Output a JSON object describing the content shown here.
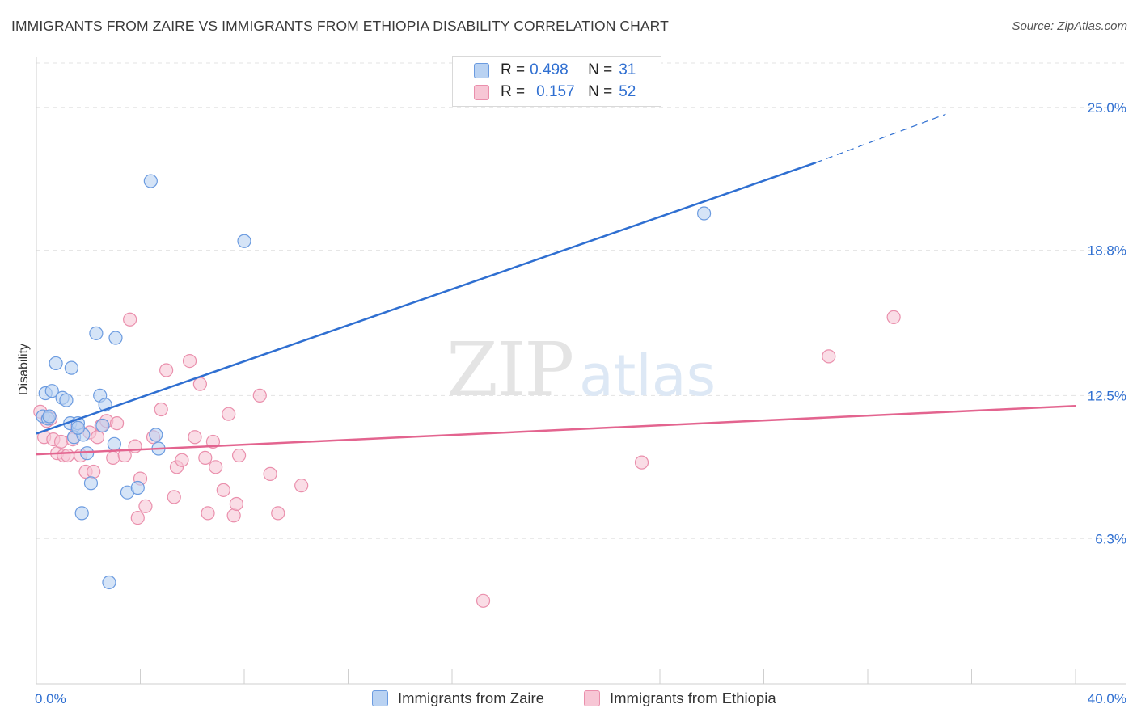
{
  "header": {
    "title": "IMMIGRANTS FROM ZAIRE VS IMMIGRANTS FROM ETHIOPIA DISABILITY CORRELATION CHART",
    "source": "Source: ZipAtlas.com"
  },
  "watermark": {
    "zip": "ZIP",
    "atlas": "atlas"
  },
  "legend": {
    "rows": [
      {
        "r_label": "R =",
        "r_value": "0.498",
        "n_label": "N =",
        "n_value": "31",
        "color": "#a9c8f0"
      },
      {
        "r_label": "R =",
        "r_value": "0.157",
        "n_label": "N =",
        "n_value": "52",
        "color": "#f5b8cb"
      }
    ]
  },
  "bottom_legend": {
    "zaire": "Immigrants from Zaire",
    "ethiopia": "Immigrants from Ethiopia"
  },
  "colors": {
    "zaire_fill": "#b9d2f2",
    "zaire_stroke": "#6b9be0",
    "zaire_line": "#2f6fd1",
    "ethiopia_fill": "#f7c6d5",
    "ethiopia_stroke": "#ea8fac",
    "ethiopia_line": "#e3648f",
    "axis_text": "#2f6fd1"
  },
  "chart_data": {
    "type": "scatter",
    "title": "IMMIGRANTS FROM ZAIRE VS IMMIGRANTS FROM ETHIOPIA DISABILITY CORRELATION CHART",
    "xlabel": "",
    "ylabel": "Disability",
    "xlim": [
      0,
      40
    ],
    "ylim": [
      0,
      27.2
    ],
    "x_tick_labels": [
      {
        "value": 0,
        "label": "0.0%"
      },
      {
        "value": 40,
        "label": "40.0%"
      }
    ],
    "y_tick_labels": [
      {
        "value": 6.3,
        "label": "6.3%"
      },
      {
        "value": 12.5,
        "label": "12.5%"
      },
      {
        "value": 18.8,
        "label": "18.8%"
      },
      {
        "value": 25.0,
        "label": "25.0%"
      }
    ],
    "x_minor_ticks": [
      0,
      4,
      8,
      12,
      16,
      20,
      24,
      28,
      32,
      36,
      40
    ],
    "grid": true,
    "series": [
      {
        "name": "Immigrants from Zaire",
        "r": 0.498,
        "n": 31,
        "trend": {
          "x0": 0,
          "y0": 10.85,
          "x1": 30,
          "y1": 22.6,
          "dash_to_x": 35,
          "dash_to_y": 24.7
        },
        "points": [
          [
            0.25,
            11.6
          ],
          [
            0.45,
            11.5
          ],
          [
            0.35,
            12.6
          ],
          [
            0.6,
            12.7
          ],
          [
            0.75,
            13.9
          ],
          [
            1.0,
            12.4
          ],
          [
            1.15,
            12.3
          ],
          [
            1.35,
            13.7
          ],
          [
            1.3,
            11.3
          ],
          [
            1.45,
            10.7
          ],
          [
            1.6,
            11.3
          ],
          [
            1.8,
            10.8
          ],
          [
            1.95,
            10.0
          ],
          [
            2.1,
            8.7
          ],
          [
            2.3,
            15.2
          ],
          [
            2.45,
            12.5
          ],
          [
            2.55,
            11.2
          ],
          [
            2.65,
            12.1
          ],
          [
            2.8,
            4.4
          ],
          [
            3.0,
            10.4
          ],
          [
            3.05,
            15.0
          ],
          [
            3.5,
            8.3
          ],
          [
            3.9,
            8.5
          ],
          [
            4.4,
            21.8
          ],
          [
            4.6,
            10.8
          ],
          [
            4.7,
            10.2
          ],
          [
            8.0,
            19.2
          ],
          [
            25.7,
            20.4
          ],
          [
            1.75,
            7.4
          ],
          [
            0.5,
            11.6
          ],
          [
            1.6,
            11.1
          ]
        ]
      },
      {
        "name": "Immigrants from Ethiopia",
        "r": 0.157,
        "n": 52,
        "trend": {
          "x0": 0,
          "y0": 9.95,
          "x1": 40,
          "y1": 12.05
        },
        "points": [
          [
            0.15,
            11.8
          ],
          [
            0.3,
            10.7
          ],
          [
            0.4,
            11.4
          ],
          [
            0.55,
            11.5
          ],
          [
            0.65,
            10.6
          ],
          [
            0.8,
            10.0
          ],
          [
            0.95,
            10.5
          ],
          [
            1.05,
            9.9
          ],
          [
            1.2,
            9.9
          ],
          [
            1.4,
            10.6
          ],
          [
            1.55,
            11.1
          ],
          [
            1.7,
            9.9
          ],
          [
            1.9,
            9.2
          ],
          [
            2.05,
            10.9
          ],
          [
            2.2,
            9.2
          ],
          [
            2.35,
            10.7
          ],
          [
            2.5,
            11.2
          ],
          [
            2.7,
            11.4
          ],
          [
            2.95,
            9.8
          ],
          [
            3.1,
            11.3
          ],
          [
            3.4,
            9.9
          ],
          [
            3.6,
            15.8
          ],
          [
            3.8,
            10.3
          ],
          [
            4.0,
            8.9
          ],
          [
            3.9,
            7.2
          ],
          [
            4.2,
            7.7
          ],
          [
            4.5,
            10.7
          ],
          [
            4.8,
            11.9
          ],
          [
            5.0,
            13.6
          ],
          [
            5.3,
            8.1
          ],
          [
            5.4,
            9.4
          ],
          [
            5.6,
            9.7
          ],
          [
            5.9,
            14.0
          ],
          [
            6.1,
            10.7
          ],
          [
            6.3,
            13.0
          ],
          [
            6.5,
            9.8
          ],
          [
            6.6,
            7.4
          ],
          [
            6.8,
            10.5
          ],
          [
            6.9,
            9.4
          ],
          [
            7.2,
            8.4
          ],
          [
            7.4,
            11.7
          ],
          [
            7.6,
            7.3
          ],
          [
            7.8,
            9.9
          ],
          [
            7.7,
            7.8
          ],
          [
            8.6,
            12.5
          ],
          [
            9.0,
            9.1
          ],
          [
            9.3,
            7.4
          ],
          [
            10.2,
            8.6
          ],
          [
            17.2,
            3.6
          ],
          [
            23.3,
            9.6
          ],
          [
            30.5,
            14.2
          ],
          [
            33.0,
            15.9
          ]
        ]
      }
    ]
  }
}
